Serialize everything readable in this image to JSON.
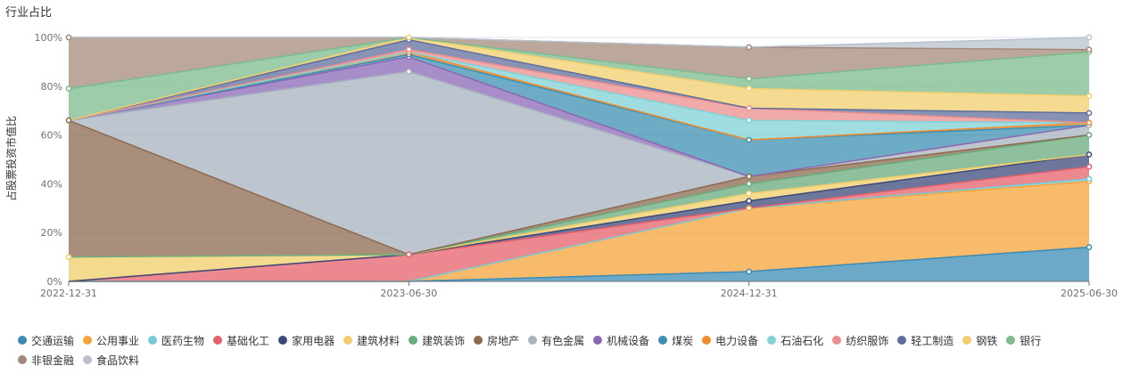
{
  "chart_data": {
    "type": "area",
    "stacked": true,
    "title": "行业占比",
    "ylabel": "占股票投资市值比",
    "x": [
      "2022-12-31",
      "2023-06-30",
      "2024-12-31",
      "2025-06-30"
    ],
    "ylim": [
      0,
      100
    ],
    "yticks": [
      "0%",
      "20%",
      "40%",
      "60%",
      "80%",
      "100%"
    ],
    "legend_position": "bottom",
    "series": [
      {
        "name": "交通运输",
        "color": "#3b8bb5",
        "values": [
          0,
          0,
          4,
          14
        ]
      },
      {
        "name": "公用事业",
        "color": "#f5a43a",
        "values": [
          0,
          0,
          26,
          27
        ]
      },
      {
        "name": "医药生物",
        "color": "#7ac8d6",
        "values": [
          0,
          0,
          0,
          1
        ]
      },
      {
        "name": "基础化工",
        "color": "#e5606b",
        "values": [
          0,
          11,
          0,
          5
        ]
      },
      {
        "name": "家用电器",
        "color": "#3c4a7a",
        "values": [
          0,
          0,
          3,
          5
        ]
      },
      {
        "name": "建筑材料",
        "color": "#f0cd6a",
        "values": [
          10,
          0,
          3,
          0
        ]
      },
      {
        "name": "建筑装饰",
        "color": "#6aab7c",
        "values": [
          0,
          0,
          4,
          8
        ]
      },
      {
        "name": "房地产",
        "color": "#8c6a4f",
        "values": [
          56,
          0,
          3,
          0
        ]
      },
      {
        "name": "有色金属",
        "color": "#a7b3bf",
        "values": [
          0,
          75,
          0,
          4
        ]
      },
      {
        "name": "机械设备",
        "color": "#8a68b5",
        "values": [
          0,
          6,
          0,
          0
        ]
      },
      {
        "name": "煤炭",
        "color": "#3d8fb0",
        "values": [
          0,
          1,
          15,
          0
        ]
      },
      {
        "name": "电力设备",
        "color": "#f08c2e",
        "values": [
          0,
          1,
          0,
          1
        ]
      },
      {
        "name": "石油石化",
        "color": "#80d2d6",
        "values": [
          0,
          0,
          8,
          0
        ]
      },
      {
        "name": "纺织服饰",
        "color": "#ec8e8e",
        "values": [
          0,
          1,
          5,
          0
        ]
      },
      {
        "name": "轻工制造",
        "color": "#5f6e9c",
        "values": [
          0,
          4,
          0,
          4
        ]
      },
      {
        "name": "钢铁",
        "color": "#f2cf6e",
        "values": [
          0,
          1,
          8,
          7
        ]
      },
      {
        "name": "银行",
        "color": "#7cbb8c",
        "values": [
          13,
          0,
          4,
          18
        ]
      },
      {
        "name": "非银金融",
        "color": "#a4897a",
        "values": [
          21,
          0,
          13,
          1
        ]
      },
      {
        "name": "食品饮料",
        "color": "#b9c1cc",
        "values": [
          0,
          0,
          0,
          5
        ]
      }
    ]
  }
}
